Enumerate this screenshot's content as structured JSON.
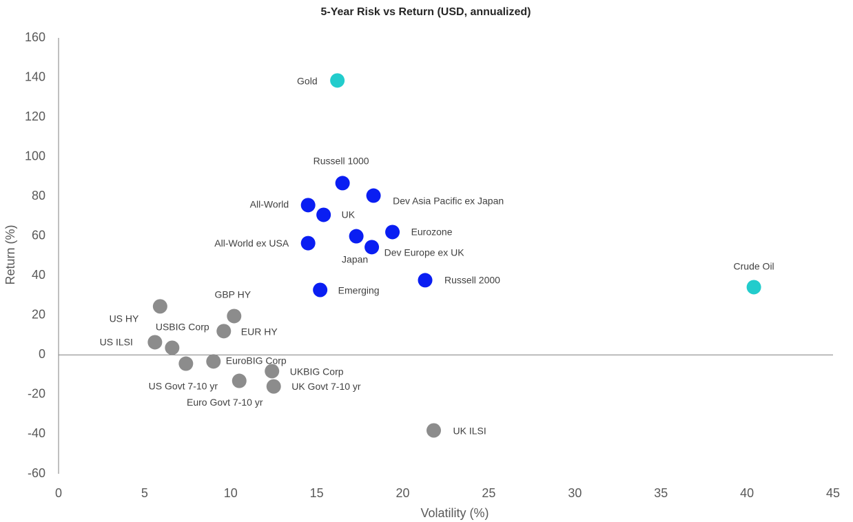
{
  "chart_data": {
    "type": "scatter",
    "title": "5-Year Risk vs Return (USD, annualized)",
    "x_label": "Volatility (%)",
    "y_label": "Return (%)",
    "xlim": [
      0,
      45
    ],
    "xticks": [
      0,
      5,
      10,
      15,
      20,
      25,
      30,
      35,
      40,
      45
    ],
    "ylim": [
      -60,
      160
    ],
    "yticks": [
      -60,
      -40,
      -20,
      0,
      20,
      40,
      60,
      80,
      100,
      120,
      140,
      160
    ],
    "series": [
      {
        "color": "#22cccc",
        "labels": [
          "Gold",
          "Crude Oil"
        ],
        "x": [
          16.2,
          40.4
        ],
        "values": [
          138.5,
          34.2
        ]
      },
      {
        "color": "#0a1ef2",
        "labels": [
          "Russell 1000",
          "Dev Asia Pacific ex Japan",
          "All-World",
          "UK",
          "Eurozone",
          "Japan",
          "All-World ex USA",
          "Dev Europe ex UK",
          "Russell 2000",
          "Emerging"
        ],
        "x": [
          16.5,
          18.3,
          14.5,
          15.4,
          19.4,
          17.3,
          14.5,
          18.2,
          21.3,
          15.2
        ],
        "values": [
          86.7,
          80.4,
          75.6,
          70.7,
          62,
          59.9,
          56.4,
          54.4,
          37.7,
          32.8
        ]
      },
      {
        "color": "#8c8c8c",
        "labels": [
          "US HY",
          "GBP HY",
          "EUR HY",
          "US ILSI",
          "USBIG Corp",
          "US Govt 7-10 yr",
          "EuroBIG Corp",
          "UKBIG Corp",
          "Euro Govt 7-10 yr",
          "UK Govt 7-10 yr",
          "UK ILSI"
        ],
        "x": [
          5.9,
          10.2,
          9.6,
          5.6,
          6.6,
          7.4,
          9.0,
          12.4,
          10.5,
          12.5,
          21.8
        ],
        "values": [
          24.5,
          19.6,
          12,
          6.4,
          3.6,
          -4.4,
          -3.3,
          -8.2,
          -13.1,
          -15.9,
          -38.1
        ]
      }
    ]
  }
}
